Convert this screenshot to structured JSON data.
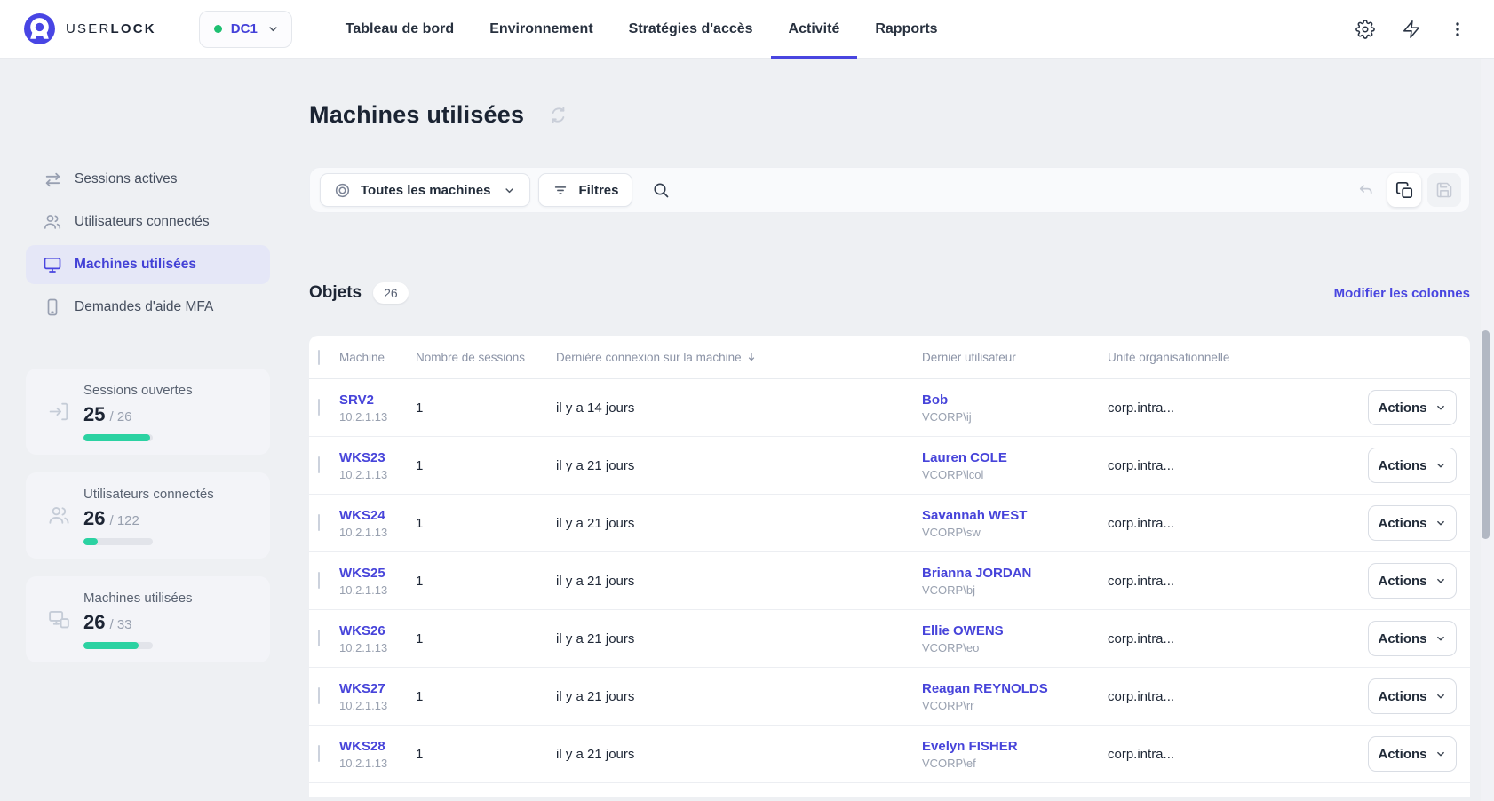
{
  "brand": {
    "word_user": "USER",
    "word_lock": "LOCK"
  },
  "server_selector": {
    "label": "DC1"
  },
  "nav": {
    "items": [
      "Tableau de bord",
      "Environnement",
      "Stratégies d'accès",
      "Activité",
      "Rapports"
    ],
    "active": "Activité"
  },
  "sidebar": {
    "menu": [
      {
        "label": "Sessions actives"
      },
      {
        "label": "Utilisateurs connectés"
      },
      {
        "label": "Machines utilisées"
      },
      {
        "label": "Demandes d'aide MFA"
      }
    ],
    "stats": [
      {
        "label": "Sessions ouvertes",
        "value": "25",
        "total": "26",
        "pct": 96
      },
      {
        "label": "Utilisateurs connectés",
        "value": "26",
        "total": "122",
        "pct": 21
      },
      {
        "label": "Machines utilisées",
        "value": "26",
        "total": "33",
        "pct": 79
      }
    ]
  },
  "main": {
    "title": "Machines utilisées",
    "toolbar": {
      "scope": "Toutes les machines",
      "filters": "Filtres"
    },
    "objects": {
      "label": "Objets",
      "count": "26"
    },
    "edit_columns": "Modifier les colonnes",
    "table": {
      "columns": {
        "machine": "Machine",
        "sessions": "Nombre de sessions",
        "last_connection": "Dernière connexion sur la machine",
        "last_user": "Dernier utilisateur",
        "ou": "Unité organisationnelle"
      },
      "actions_label": "Actions",
      "rows": [
        {
          "machine": "SRV2",
          "ip": "10.2.1.13",
          "sessions": "1",
          "last": "il y a 14 jours",
          "user": "Bob",
          "account": "VCORP\\ij",
          "ou": "corp.intra..."
        },
        {
          "machine": "WKS23",
          "ip": "10.2.1.13",
          "sessions": "1",
          "last": "il y a 21 jours",
          "user": "Lauren COLE",
          "account": "VCORP\\lcol",
          "ou": "corp.intra..."
        },
        {
          "machine": "WKS24",
          "ip": "10.2.1.13",
          "sessions": "1",
          "last": "il y a 21 jours",
          "user": "Savannah WEST",
          "account": "VCORP\\sw",
          "ou": "corp.intra..."
        },
        {
          "machine": "WKS25",
          "ip": "10.2.1.13",
          "sessions": "1",
          "last": "il y a 21 jours",
          "user": "Brianna JORDAN",
          "account": "VCORP\\bj",
          "ou": "corp.intra..."
        },
        {
          "machine": "WKS26",
          "ip": "10.2.1.13",
          "sessions": "1",
          "last": "il y a 21 jours",
          "user": "Ellie OWENS",
          "account": "VCORP\\eo",
          "ou": "corp.intra..."
        },
        {
          "machine": "WKS27",
          "ip": "10.2.1.13",
          "sessions": "1",
          "last": "il y a 21 jours",
          "user": "Reagan REYNOLDS",
          "account": "VCORP\\rr",
          "ou": "corp.intra..."
        },
        {
          "machine": "WKS28",
          "ip": "10.2.1.13",
          "sessions": "1",
          "last": "il y a 21 jours",
          "user": "Evelyn FISHER",
          "account": "VCORP\\ef",
          "ou": "corp.intra..."
        }
      ]
    }
  },
  "colors": {
    "accent": "#4945e0",
    "green_dot": "#1ec071",
    "progress_teal": "#2bd2a2"
  }
}
